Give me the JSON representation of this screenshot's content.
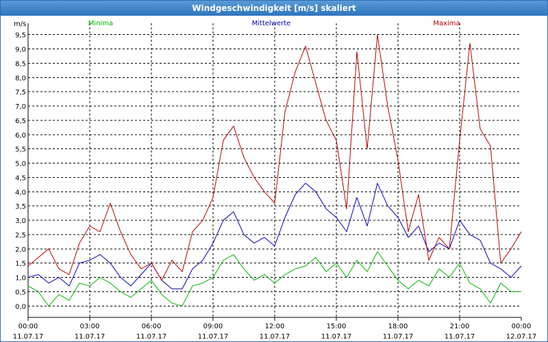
{
  "window": {
    "title": "Windgeschwindigkeit [m/s] skaliert"
  },
  "chart_data": {
    "type": "line",
    "title": "Windgeschwindigkeit [m/s] skaliert",
    "ylabel": "m/s",
    "ylim": [
      -0.4,
      9.9
    ],
    "y_ticks": [
      "0,0",
      "0,5",
      "1,0",
      "1,5",
      "2,0",
      "2,5",
      "3,0",
      "3,5",
      "4,0",
      "4,5",
      "5,0",
      "5,5",
      "6,0",
      "6,5",
      "7,0",
      "7,5",
      "8,0",
      "8,5",
      "9,0",
      "9,5"
    ],
    "x_ticks": [
      {
        "time": "00:00",
        "date": "11.07.17"
      },
      {
        "time": "03:00",
        "date": "11.07.17"
      },
      {
        "time": "06:00",
        "date": "11.07.17"
      },
      {
        "time": "09:00",
        "date": "11.07.17"
      },
      {
        "time": "12:00",
        "date": "11.07.17"
      },
      {
        "time": "15:00",
        "date": "11.07.17"
      },
      {
        "time": "18:00",
        "date": "11.07.17"
      },
      {
        "time": "21:00",
        "date": "11.07.17"
      },
      {
        "time": "00:00",
        "date": "12.07.17"
      }
    ],
    "x_hours": [
      0,
      0.5,
      1,
      1.5,
      2,
      2.5,
      3,
      3.5,
      4,
      4.5,
      5,
      5.5,
      6,
      6.5,
      7,
      7.5,
      8,
      8.5,
      9,
      9.5,
      10,
      10.5,
      11,
      11.5,
      12,
      12.5,
      13,
      13.5,
      14,
      14.5,
      15,
      15.5,
      16,
      16.5,
      17,
      17.5,
      18,
      18.5,
      19,
      19.5,
      20,
      20.5,
      21,
      21.5,
      22,
      22.5,
      23,
      23.5,
      24
    ],
    "grid": true,
    "legend": "top",
    "series": [
      {
        "name": "Minima",
        "color": "#00b400",
        "values": [
          0.7,
          0.5,
          0.0,
          0.4,
          0.2,
          0.8,
          0.7,
          1.0,
          0.8,
          0.5,
          0.3,
          0.6,
          0.9,
          0.4,
          0.1,
          0.0,
          0.7,
          0.8,
          1.0,
          1.6,
          1.8,
          1.3,
          0.9,
          1.1,
          0.8,
          1.1,
          1.3,
          1.4,
          1.7,
          1.2,
          1.5,
          1.0,
          1.6,
          1.2,
          1.9,
          1.4,
          0.9,
          0.6,
          0.9,
          0.7,
          1.3,
          1.0,
          1.5,
          0.8,
          0.6,
          0.1,
          0.8,
          0.5,
          0.5
        ]
      },
      {
        "name": "Mittelwerte",
        "color": "#0000b4",
        "values": [
          1.0,
          1.1,
          0.8,
          1.0,
          0.7,
          1.5,
          1.6,
          1.8,
          1.5,
          1.0,
          0.7,
          1.1,
          1.5,
          0.9,
          0.6,
          0.6,
          1.3,
          1.6,
          2.2,
          3.0,
          3.3,
          2.5,
          2.2,
          2.4,
          2.1,
          3.1,
          3.9,
          4.3,
          4.0,
          3.4,
          3.1,
          2.6,
          3.8,
          2.8,
          4.3,
          3.5,
          3.1,
          2.4,
          2.8,
          1.9,
          2.2,
          2.0,
          3.0,
          2.5,
          2.3,
          1.5,
          1.3,
          1.0,
          1.4
        ]
      },
      {
        "name": "Maxima",
        "color": "#b40000",
        "values": [
          1.4,
          1.7,
          2.0,
          1.3,
          1.1,
          2.2,
          2.8,
          2.6,
          3.6,
          2.6,
          1.8,
          1.3,
          1.5,
          0.9,
          1.6,
          1.2,
          2.6,
          3.0,
          3.8,
          5.8,
          6.3,
          5.2,
          4.5,
          4.0,
          3.6,
          6.8,
          8.2,
          9.1,
          7.8,
          6.5,
          5.8,
          3.4,
          8.9,
          5.5,
          9.5,
          7.0,
          5.1,
          2.6,
          3.9,
          1.6,
          2.4,
          2.0,
          5.8,
          9.2,
          6.2,
          5.6,
          1.5,
          2.0,
          2.6
        ]
      }
    ]
  }
}
